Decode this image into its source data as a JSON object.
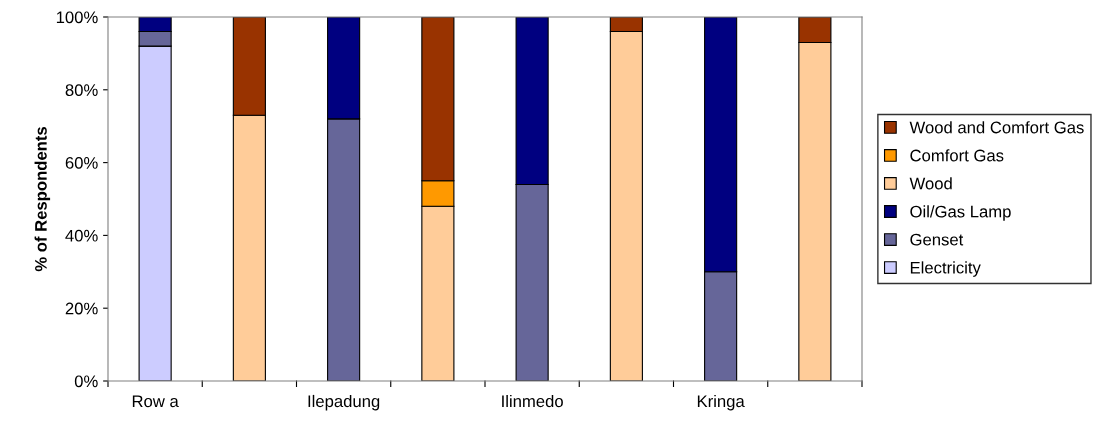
{
  "chart_data": {
    "type": "bar",
    "stacked": true,
    "ylabel": "% of Respondents",
    "categories": [
      "Row a",
      null,
      "Ilepadung",
      null,
      "Ilinmedo",
      null,
      "Kringa",
      null
    ],
    "series": [
      {
        "name": "Electricity",
        "color": "#ccccff",
        "values": [
          92,
          null,
          null,
          null,
          null,
          null,
          null,
          null
        ]
      },
      {
        "name": "Genset",
        "color": "#666699",
        "values": [
          4,
          null,
          72,
          null,
          54,
          null,
          30,
          null
        ]
      },
      {
        "name": "Oil/Gas Lamp",
        "color": "#000080",
        "values": [
          4,
          null,
          28,
          null,
          46,
          null,
          70,
          null
        ]
      },
      {
        "name": "Wood",
        "color": "#ffcc99",
        "values": [
          null,
          73,
          null,
          48,
          null,
          96,
          null,
          93
        ]
      },
      {
        "name": "Comfort Gas",
        "color": "#ff9900",
        "values": [
          null,
          null,
          null,
          7,
          null,
          null,
          null,
          null
        ]
      },
      {
        "name": "Wood and Comfort Gas",
        "color": "#993300",
        "values": [
          null,
          27,
          null,
          45,
          null,
          4,
          null,
          7
        ]
      }
    ],
    "ylim": [
      0,
      100
    ],
    "yticks": [
      {
        "value": 0,
        "label": "0%"
      },
      {
        "value": 20,
        "label": "20%"
      },
      {
        "value": 40,
        "label": "40%"
      },
      {
        "value": 60,
        "label": "60%"
      },
      {
        "value": 80,
        "label": "80%"
      },
      {
        "value": 100,
        "label": "100%"
      }
    ],
    "grid": false,
    "legend": "right"
  }
}
